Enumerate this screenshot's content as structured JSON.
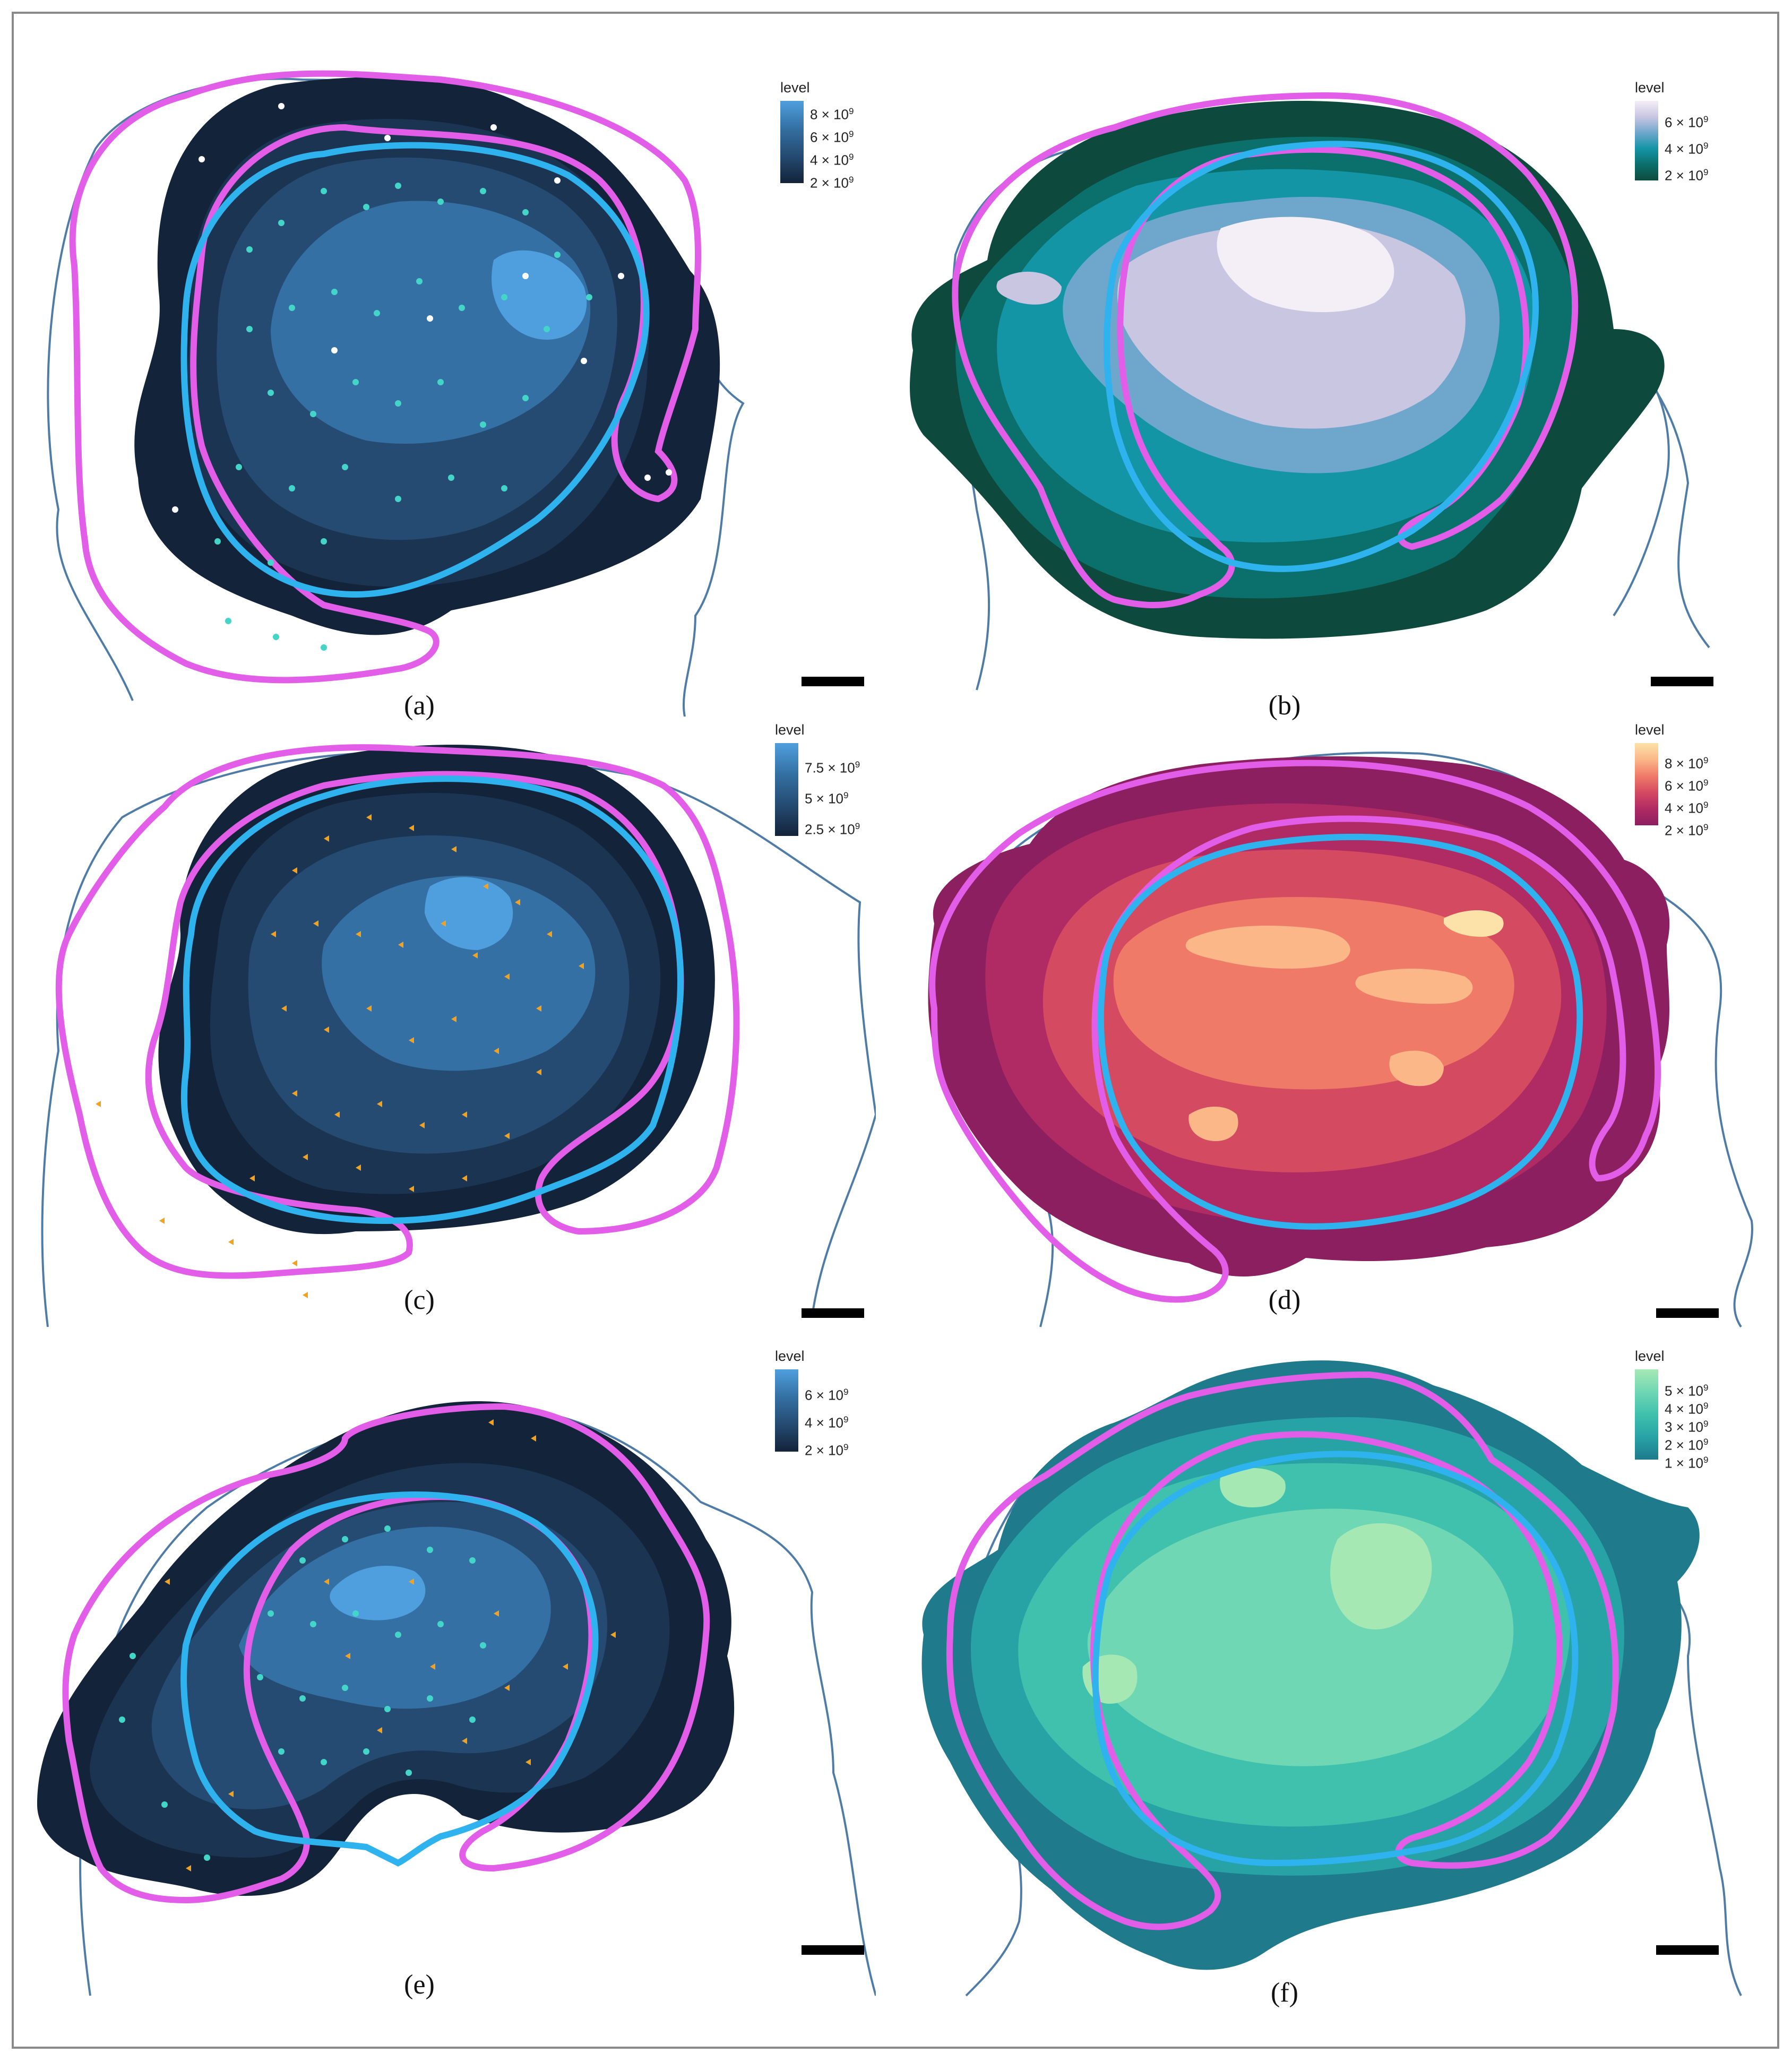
{
  "figure": {
    "panels": [
      {
        "id": "a",
        "caption": "(a)",
        "legend_title": "level",
        "legend_ticks": [
          "8 × 10",
          "6 × 10",
          "4 × 10",
          "2 × 10"
        ],
        "legend_exp": "9",
        "palette": [
          "#13233a",
          "#1b3452",
          "#254b72",
          "#3470a3",
          "#4f9fde"
        ],
        "points": "cyan-white dots"
      },
      {
        "id": "b",
        "caption": "(b)",
        "legend_title": "level",
        "legend_ticks": [
          "6 × 10",
          "4 × 10",
          "2 × 10"
        ],
        "legend_exp": "9",
        "palette": [
          "#0d4a3d",
          "#0b6f6b",
          "#1395a6",
          "#6fa6cc",
          "#c9c6e2",
          "#f4eef6"
        ]
      },
      {
        "id": "c",
        "caption": "(c)",
        "legend_title": "level",
        "legend_ticks": [
          "7.5 × 10",
          "5 × 10",
          "2.5 × 10"
        ],
        "legend_exp": "9",
        "palette": [
          "#13233a",
          "#1b3452",
          "#254b72",
          "#3470a3",
          "#4f9fde"
        ],
        "points": "orange triangles"
      },
      {
        "id": "d",
        "caption": "(d)",
        "legend_title": "level",
        "legend_ticks": [
          "8 × 10",
          "6 × 10",
          "4 × 10",
          "2 × 10"
        ],
        "legend_exp": "9",
        "palette": [
          "#8c1f5f",
          "#b02a63",
          "#d44a61",
          "#f07a68",
          "#fbb788",
          "#fce2a8"
        ]
      },
      {
        "id": "e",
        "caption": "(e)",
        "legend_title": "level",
        "legend_ticks": [
          "6 × 10",
          "4 × 10",
          "2 × 10"
        ],
        "legend_exp": "9",
        "palette": [
          "#13233a",
          "#1b3452",
          "#254b72",
          "#3470a3",
          "#4f9fde"
        ],
        "points": "cyan dots and orange triangles"
      },
      {
        "id": "f",
        "caption": "(f)",
        "legend_title": "level",
        "legend_ticks": [
          "5 × 10",
          "4 × 10",
          "3 × 10",
          "2 × 10",
          "1 × 10"
        ],
        "legend_exp": "9",
        "palette": [
          "#1f7a8c",
          "#27a3a6",
          "#3fc1ad",
          "#6fd7b4",
          "#a6e8b4"
        ]
      }
    ]
  },
  "chart_data": [
    {
      "type": "heatmap",
      "panel": "a",
      "legend_title": "level",
      "legend_ticks": [
        8000000000.0,
        6000000000.0,
        4000000000.0,
        2000000000.0
      ]
    },
    {
      "type": "heatmap",
      "panel": "b",
      "legend_title": "level",
      "legend_ticks": [
        6000000000.0,
        4000000000.0,
        2000000000.0
      ]
    },
    {
      "type": "heatmap",
      "panel": "c",
      "legend_title": "level",
      "legend_ticks": [
        7500000000.0,
        5000000000.0,
        2500000000.0
      ]
    },
    {
      "type": "heatmap",
      "panel": "d",
      "legend_title": "level",
      "legend_ticks": [
        8000000000.0,
        6000000000.0,
        4000000000.0,
        2000000000.0
      ]
    },
    {
      "type": "heatmap",
      "panel": "e",
      "legend_title": "level",
      "legend_ticks": [
        6000000000.0,
        4000000000.0,
        2000000000.0
      ]
    },
    {
      "type": "heatmap",
      "panel": "f",
      "legend_title": "level",
      "legend_ticks": [
        5000000000.0,
        4000000000.0,
        3000000000.0,
        2000000000.0,
        1000000000.0
      ]
    }
  ]
}
